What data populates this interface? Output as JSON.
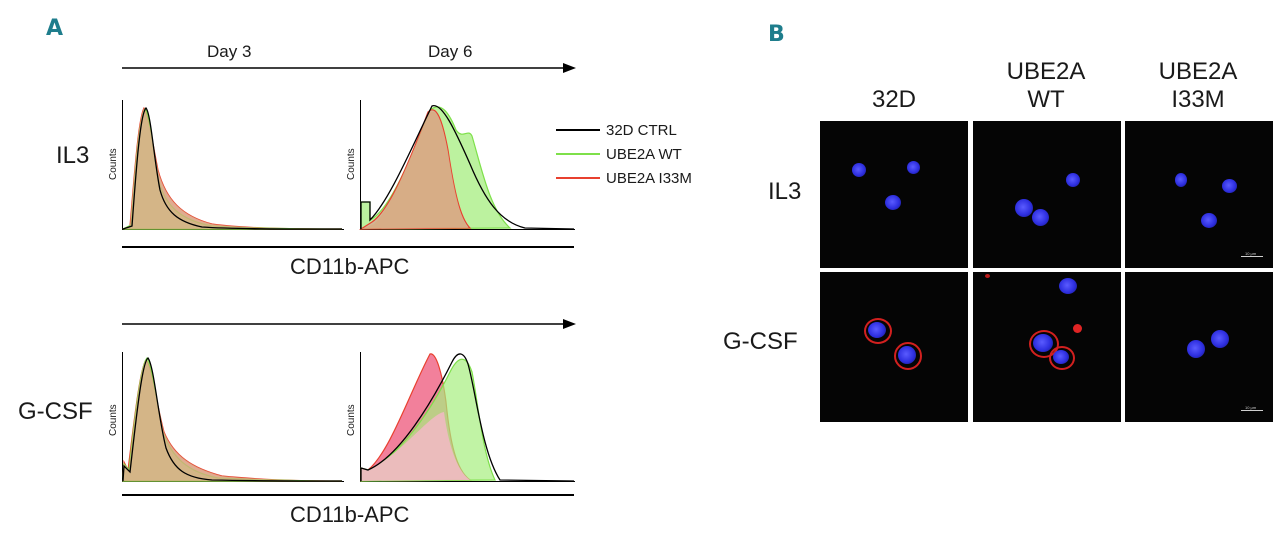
{
  "panels": {
    "a": {
      "letter": "A",
      "time_labels": {
        "day3": "Day 3",
        "day6": "Day 6"
      },
      "rows": [
        {
          "label": "IL3",
          "axis_label": "CD11b-APC"
        },
        {
          "label": "G-CSF",
          "axis_label": "CD11b-APC"
        }
      ],
      "y_axis_label": "Counts",
      "legend": [
        {
          "name": "32D CTRL",
          "color": "#000000"
        },
        {
          "name": "UBE2A WT",
          "color": "#7ee04a"
        },
        {
          "name": "UBE2A I33M",
          "color": "#e8402f"
        }
      ]
    },
    "b": {
      "letter": "B",
      "columns": [
        {
          "line1": "32D",
          "line2": ""
        },
        {
          "line1": "UBE2A",
          "line2": "WT"
        },
        {
          "line1": "UBE2A",
          "line2": "I33M"
        }
      ],
      "rows": [
        {
          "label": "IL3"
        },
        {
          "label": "G-CSF"
        }
      ],
      "scale_bar_label": "10 μm"
    }
  },
  "colors": {
    "ctrl": "#000000",
    "wt_fill": "#a6ee7f",
    "i33m_fill": "#f06a8a",
    "overlap_fill": "#d8ab82",
    "nucleus": "#3a3bf0",
    "membrane": "#d2201f"
  }
}
